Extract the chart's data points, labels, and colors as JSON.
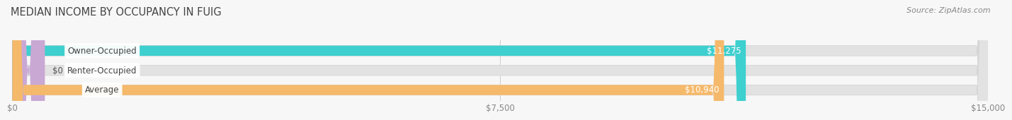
{
  "title": "MEDIAN INCOME BY OCCUPANCY IN FUIG",
  "source": "Source: ZipAtlas.com",
  "categories": [
    "Owner-Occupied",
    "Renter-Occupied",
    "Average"
  ],
  "values": [
    11275,
    0,
    10940
  ],
  "bar_colors": [
    "#3ecfcf",
    "#c9a8d4",
    "#f5b96b"
  ],
  "bar_labels": [
    "$11,275",
    "$0",
    "$10,940"
  ],
  "xlim": [
    0,
    15000
  ],
  "xticks": [
    0,
    7500,
    15000
  ],
  "xticklabels": [
    "$0",
    "$7,500",
    "$15,000"
  ],
  "background_color": "#f7f7f7",
  "bar_bg_color": "#e2e2e2",
  "title_fontsize": 10.5,
  "source_fontsize": 8,
  "label_fontsize": 8.5,
  "tick_fontsize": 8.5,
  "bar_height": 0.52,
  "title_color": "#444444",
  "label_color": "#444444",
  "tick_color": "#888888",
  "source_color": "#888888",
  "value_label_color_on_bar": "#ffffff",
  "value_label_color_off_bar": "#555555",
  "renter_nub_value": 500
}
